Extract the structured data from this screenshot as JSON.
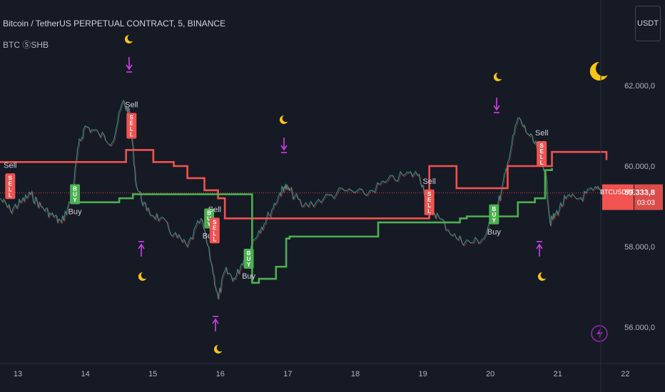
{
  "header": {
    "symbol_title": "Bitcoin / TetherUS PERPETUAL CONTRACT, 5, BINANCE",
    "indicator_name": "BTC ⓈSHB"
  },
  "currency_button": "USDT",
  "price_tag": {
    "symbol": "BTCUSDT.P",
    "price": "59.333,8",
    "countdown": "03:03"
  },
  "colors": {
    "background": "#161a25",
    "up": "#4caf50",
    "down": "#f05350",
    "marker": "#e040fb",
    "moon": "#f5c518",
    "price_tag": "#f05350"
  },
  "icons": {
    "moon": "moon-icon",
    "lightning": "lightning-icon"
  },
  "chart_data": {
    "type": "line",
    "x_tick_labels": [
      "13",
      "14",
      "15",
      "16",
      "17",
      "18",
      "19",
      "20",
      "21",
      "22"
    ],
    "y_tick_labels": [
      "62.000,0",
      "60.000,0",
      "58.000,0",
      "56.000,0"
    ],
    "ylim": [
      55300,
      63300
    ],
    "xlim": [
      12.75,
      22.2
    ],
    "grid": false,
    "current_price": 59333.8,
    "series": [
      {
        "role": "price",
        "values": [
          [
            12.75,
            59200
          ],
          [
            12.9,
            58900
          ],
          [
            13.05,
            59100
          ],
          [
            13.2,
            59300
          ],
          [
            13.35,
            59000
          ],
          [
            13.5,
            58800
          ],
          [
            13.65,
            58600
          ],
          [
            13.8,
            59200
          ],
          [
            13.9,
            60500
          ],
          [
            14.0,
            61000
          ],
          [
            14.2,
            60800
          ],
          [
            14.4,
            60600
          ],
          [
            14.55,
            61600
          ],
          [
            14.65,
            61300
          ],
          [
            14.75,
            59500
          ],
          [
            14.9,
            58900
          ],
          [
            15.1,
            58700
          ],
          [
            15.3,
            58300
          ],
          [
            15.5,
            58000
          ],
          [
            15.7,
            58700
          ],
          [
            15.85,
            57600
          ],
          [
            15.95,
            56700
          ],
          [
            16.05,
            57400
          ],
          [
            16.2,
            57200
          ],
          [
            16.35,
            57800
          ],
          [
            16.55,
            58400
          ],
          [
            16.7,
            58800
          ],
          [
            16.85,
            59300
          ],
          [
            16.92,
            59500
          ],
          [
            17.0,
            59400
          ],
          [
            17.2,
            59000
          ],
          [
            17.5,
            59200
          ],
          [
            17.8,
            59400
          ],
          [
            18.1,
            59300
          ],
          [
            18.4,
            59600
          ],
          [
            18.7,
            59800
          ],
          [
            18.9,
            59800
          ],
          [
            19.05,
            59000
          ],
          [
            19.2,
            58700
          ],
          [
            19.45,
            58200
          ],
          [
            19.65,
            58100
          ],
          [
            19.85,
            58200
          ],
          [
            20.0,
            58800
          ],
          [
            20.1,
            59300
          ],
          [
            20.2,
            60100
          ],
          [
            20.35,
            61200
          ],
          [
            20.5,
            60800
          ],
          [
            20.65,
            60400
          ],
          [
            20.75,
            59900
          ],
          [
            20.82,
            58600
          ],
          [
            20.9,
            58800
          ],
          [
            21.05,
            59200
          ],
          [
            21.25,
            59200
          ],
          [
            21.45,
            59400
          ],
          [
            21.6,
            59400
          ]
        ]
      },
      {
        "role": "upper_band",
        "values": [
          [
            12.75,
            60100
          ],
          [
            13.9,
            60100
          ],
          [
            14.55,
            60100
          ],
          [
            14.6,
            60400
          ],
          [
            14.8,
            60400
          ],
          [
            15.0,
            60100
          ],
          [
            15.3,
            60000
          ],
          [
            15.5,
            59700
          ],
          [
            15.75,
            59400
          ],
          [
            15.95,
            59200
          ],
          [
            16.05,
            58700
          ],
          [
            16.45,
            58700
          ],
          [
            19.05,
            60000
          ],
          [
            19.4,
            60000
          ],
          [
            19.45,
            59450
          ],
          [
            20.05,
            59450
          ],
          [
            20.2,
            60000
          ],
          [
            20.85,
            60350
          ],
          [
            21.65,
            60150
          ]
        ]
      },
      {
        "role": "lower_band",
        "values": [
          [
            13.85,
            59100
          ],
          [
            14.5,
            59200
          ],
          [
            14.7,
            59300
          ],
          [
            15.1,
            59300
          ],
          [
            16.45,
            57100
          ],
          [
            16.55,
            57200
          ],
          [
            16.8,
            57500
          ],
          [
            16.95,
            58200
          ],
          [
            17.0,
            58250
          ],
          [
            18.3,
            58600
          ],
          [
            18.9,
            58600
          ],
          [
            19.5,
            58700
          ],
          [
            19.6,
            58750
          ],
          [
            20.35,
            59100
          ],
          [
            20.6,
            59200
          ],
          [
            20.75,
            59900
          ],
          [
            20.85,
            59950
          ]
        ]
      }
    ],
    "signals": [
      {
        "label": "Sell",
        "x": 12.9,
        "y": 59500
      },
      {
        "label": "Buy",
        "x": 13.85,
        "y": 59300
      },
      {
        "label": "Sell",
        "x": 14.68,
        "y": 61000
      },
      {
        "label": "Buy",
        "x": 15.82,
        "y": 58700
      },
      {
        "label": "Sell",
        "x": 15.9,
        "y": 58400
      },
      {
        "label": "Buy",
        "x": 16.4,
        "y": 57700
      },
      {
        "label": "Sell",
        "x": 19.05,
        "y": 59100
      },
      {
        "label": "Buy",
        "x": 20.0,
        "y": 58800
      },
      {
        "label": "Sell",
        "x": 20.7,
        "y": 60300
      }
    ],
    "signal_codes": {
      "Sell": "SELL",
      "Buy": "BUY"
    }
  }
}
